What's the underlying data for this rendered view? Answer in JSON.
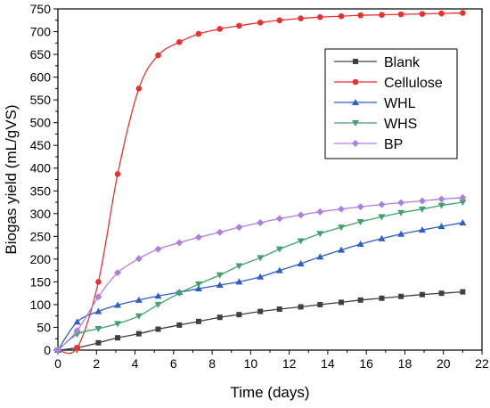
{
  "chart_data": {
    "type": "line",
    "title": "",
    "xlabel": "Time (days)",
    "ylabel": "Biogas yield (mL/gVS)",
    "xlim": [
      0,
      22
    ],
    "ylim": [
      0,
      750
    ],
    "x_ticks": [
      0,
      2,
      4,
      6,
      8,
      10,
      12,
      14,
      16,
      18,
      20,
      22
    ],
    "y_ticks": [
      0,
      50,
      100,
      150,
      200,
      250,
      300,
      350,
      400,
      450,
      500,
      550,
      600,
      650,
      700,
      750
    ],
    "grid": false,
    "legend_position": "top-right",
    "series": [
      {
        "name": "Blank",
        "color": "#404040",
        "marker": "square",
        "x": [
          0,
          1,
          2.1,
          3.1,
          4.2,
          5.2,
          6.3,
          7.3,
          8.4,
          9.4,
          10.5,
          11.5,
          12.6,
          13.6,
          14.7,
          15.7,
          16.8,
          17.8,
          18.9,
          19.9,
          21
        ],
        "y": [
          0,
          5,
          16,
          27,
          36,
          46,
          55,
          63,
          72,
          78,
          85,
          90,
          95,
          100,
          105,
          110,
          114,
          118,
          122,
          125,
          128
        ]
      },
      {
        "name": "Cellulose",
        "color": "#e83232",
        "marker": "circle",
        "x": [
          0,
          1,
          2.1,
          3.1,
          4.2,
          5.2,
          6.3,
          7.3,
          8.4,
          9.4,
          10.5,
          11.5,
          12.6,
          13.6,
          14.7,
          15.7,
          16.8,
          17.8,
          18.9,
          19.9,
          21
        ],
        "y": [
          0,
          5,
          150,
          387,
          575,
          648,
          677,
          695,
          706,
          713,
          720,
          725,
          729,
          732,
          734,
          736,
          737,
          738,
          739,
          740,
          741
        ]
      },
      {
        "name": "WHL",
        "color": "#2e5fc7",
        "marker": "triangle-up",
        "x": [
          0,
          1,
          2.1,
          3.1,
          4.2,
          5.2,
          6.3,
          7.3,
          8.4,
          9.4,
          10.5,
          11.5,
          12.6,
          13.6,
          14.7,
          15.7,
          16.8,
          17.8,
          18.9,
          19.9,
          21
        ],
        "y": [
          0,
          62,
          85,
          99,
          110,
          119,
          127,
          135,
          143,
          150,
          161,
          175,
          190,
          205,
          220,
          233,
          245,
          255,
          264,
          272,
          280
        ]
      },
      {
        "name": "WHS",
        "color": "#3fa26a",
        "marker": "triangle-down",
        "x": [
          0,
          1,
          2.1,
          3.1,
          4.2,
          5.2,
          6.3,
          7.3,
          8.4,
          9.4,
          10.5,
          11.5,
          12.6,
          13.6,
          14.7,
          15.7,
          16.8,
          17.8,
          18.9,
          19.9,
          21
        ],
        "y": [
          0,
          35,
          47,
          58,
          75,
          100,
          125,
          145,
          165,
          185,
          203,
          222,
          240,
          256,
          270,
          282,
          293,
          302,
          310,
          318,
          325
        ]
      },
      {
        "name": "BP",
        "color": "#b07ee0",
        "marker": "diamond",
        "x": [
          0,
          1,
          2.1,
          3.1,
          4.2,
          5.2,
          6.3,
          7.3,
          8.4,
          9.4,
          10.5,
          11.5,
          12.6,
          13.6,
          14.7,
          15.7,
          16.8,
          17.8,
          18.9,
          19.9,
          21
        ],
        "y": [
          0,
          43,
          117,
          170,
          201,
          222,
          236,
          248,
          259,
          270,
          280,
          289,
          297,
          304,
          310,
          315,
          320,
          324,
          328,
          332,
          335
        ]
      }
    ]
  }
}
